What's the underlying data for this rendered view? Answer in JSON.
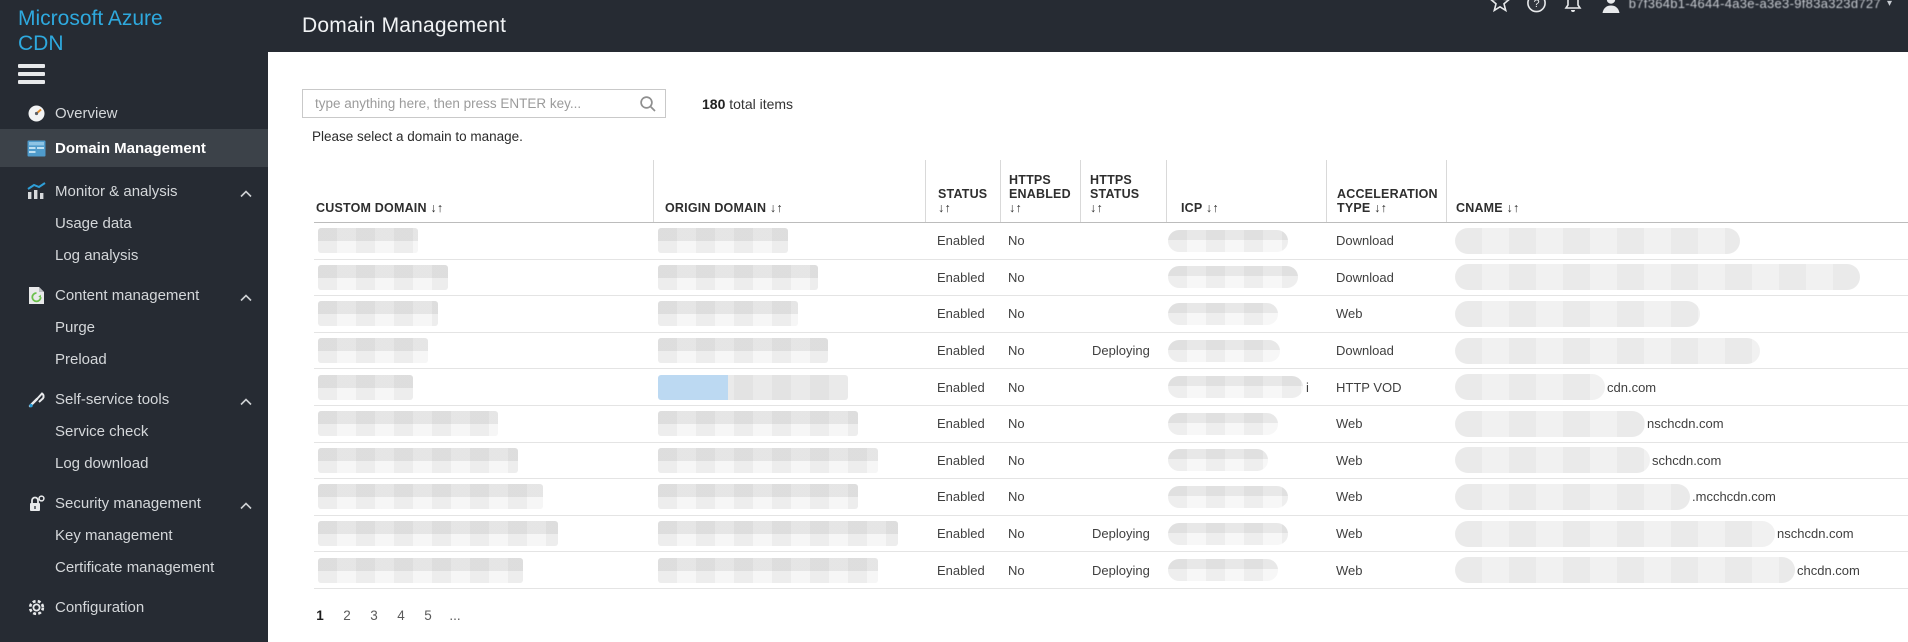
{
  "brand": {
    "line1": "Microsoft Azure",
    "line2": "CDN",
    "accent_color": "#2ea9de"
  },
  "header": {
    "title": "Domain Management",
    "user_name": "b7f364b1-4644-4a3e-a3e3-9f83a323d727",
    "caret": "▾"
  },
  "sidebar": {
    "items": [
      {
        "label": "Overview",
        "icon": "gauge",
        "type": "item"
      },
      {
        "label": "Domain Management",
        "icon": "window",
        "type": "item",
        "active": true
      },
      {
        "label": "Monitor & analysis",
        "icon": "chart",
        "type": "group",
        "expanded": true
      },
      {
        "label": "Usage data",
        "type": "subitem"
      },
      {
        "label": "Log analysis",
        "type": "subitem"
      },
      {
        "label": "Content management",
        "icon": "document",
        "type": "group",
        "expanded": true
      },
      {
        "label": "Purge",
        "type": "subitem"
      },
      {
        "label": "Preload",
        "type": "subitem"
      },
      {
        "label": "Self-service tools",
        "icon": "tools",
        "type": "group",
        "expanded": true
      },
      {
        "label": "Service check",
        "type": "subitem"
      },
      {
        "label": "Log download",
        "type": "subitem"
      },
      {
        "label": "Security management",
        "icon": "lock",
        "type": "group",
        "expanded": true
      },
      {
        "label": "Key management",
        "type": "subitem"
      },
      {
        "label": "Certificate management",
        "type": "subitem"
      },
      {
        "label": "Configuration",
        "icon": "gear",
        "type": "item"
      }
    ]
  },
  "toolbar": {
    "search_placeholder": "type anything here, then press ENTER key...",
    "total_count": "180",
    "total_label": " total items",
    "hint": "Please select a domain to manage."
  },
  "table": {
    "columns": [
      {
        "label": "CUSTOM DOMAIN",
        "sort": "↓↑",
        "arrows_block": false
      },
      {
        "label": "ORIGIN DOMAIN",
        "sort": "↓↑",
        "arrows_block": false
      },
      {
        "label": "STATUS",
        "sort": "↓↑",
        "arrows_block": true
      },
      {
        "label": "HTTPS ENABLED",
        "sort": "↓↑",
        "arrows_block": true
      },
      {
        "label": "HTTPS STATUS",
        "sort": "↓↑",
        "arrows_block": true
      },
      {
        "label": "ICP",
        "sort": "↓↑",
        "arrows_block": false
      },
      {
        "label": "ACCELERATION TYPE",
        "sort": "↓↑",
        "arrows_block": false
      },
      {
        "label": "CNAME",
        "sort": "↓↑",
        "arrows_block": false
      }
    ],
    "rows": [
      {
        "status": "Enabled",
        "https_enabled": "No",
        "https_status": "",
        "accel_type": "Download",
        "cname_visible": "",
        "icp_note": "",
        "redact_custom_w": 100,
        "redact_origin_w": 130,
        "redact_icp_w": 120,
        "redact_cname_w": 285,
        "origin_highlight": false
      },
      {
        "status": "Enabled",
        "https_enabled": "No",
        "https_status": "",
        "accel_type": "Download",
        "cname_visible": "",
        "icp_note": "",
        "redact_custom_w": 130,
        "redact_origin_w": 160,
        "redact_icp_w": 130,
        "redact_cname_w": 405,
        "origin_highlight": false
      },
      {
        "status": "Enabled",
        "https_enabled": "No",
        "https_status": "",
        "accel_type": "Web",
        "cname_visible": "",
        "icp_note": "",
        "redact_custom_w": 120,
        "redact_origin_w": 140,
        "redact_icp_w": 110,
        "redact_cname_w": 245,
        "origin_highlight": false
      },
      {
        "status": "Enabled",
        "https_enabled": "No",
        "https_status": "Deploying",
        "accel_type": "Download",
        "cname_visible": "",
        "icp_note": "",
        "redact_custom_w": 110,
        "redact_origin_w": 170,
        "redact_icp_w": 112,
        "redact_cname_w": 305,
        "origin_highlight": false
      },
      {
        "status": "Enabled",
        "https_enabled": "No",
        "https_status": "",
        "accel_type": "HTTP VOD",
        "cname_visible": "cdn.com",
        "icp_note": "i",
        "redact_custom_w": 95,
        "redact_origin_w": 190,
        "redact_icp_w": 135,
        "redact_cname_w": 150,
        "origin_highlight": true
      },
      {
        "status": "Enabled",
        "https_enabled": "No",
        "https_status": "",
        "accel_type": "Web",
        "cname_visible": "nschcdn.com",
        "icp_note": "",
        "redact_custom_w": 180,
        "redact_origin_w": 200,
        "redact_icp_w": 110,
        "redact_cname_w": 190,
        "origin_highlight": false
      },
      {
        "status": "Enabled",
        "https_enabled": "No",
        "https_status": "",
        "accel_type": "Web",
        "cname_visible": "schcdn.com",
        "icp_note": "",
        "redact_custom_w": 200,
        "redact_origin_w": 220,
        "redact_icp_w": 100,
        "redact_cname_w": 195,
        "origin_highlight": false
      },
      {
        "status": "Enabled",
        "https_enabled": "No",
        "https_status": "",
        "accel_type": "Web",
        "cname_visible": ".mcchcdn.com",
        "icp_note": "",
        "redact_custom_w": 225,
        "redact_origin_w": 200,
        "redact_icp_w": 120,
        "redact_cname_w": 235,
        "origin_highlight": false
      },
      {
        "status": "Enabled",
        "https_enabled": "No",
        "https_status": "Deploying",
        "accel_type": "Web",
        "cname_visible": "nschcdn.com",
        "icp_note": "",
        "redact_custom_w": 240,
        "redact_origin_w": 240,
        "redact_icp_w": 120,
        "redact_cname_w": 320,
        "origin_highlight": false
      },
      {
        "status": "Enabled",
        "https_enabled": "No",
        "https_status": "Deploying",
        "accel_type": "Web",
        "cname_visible": "chcdn.com",
        "icp_note": "",
        "redact_custom_w": 205,
        "redact_origin_w": 220,
        "redact_icp_w": 110,
        "redact_cname_w": 340,
        "origin_highlight": false
      }
    ]
  },
  "pagination": {
    "pages": [
      "1",
      "2",
      "3",
      "4",
      "5",
      "..."
    ],
    "current": "1"
  }
}
